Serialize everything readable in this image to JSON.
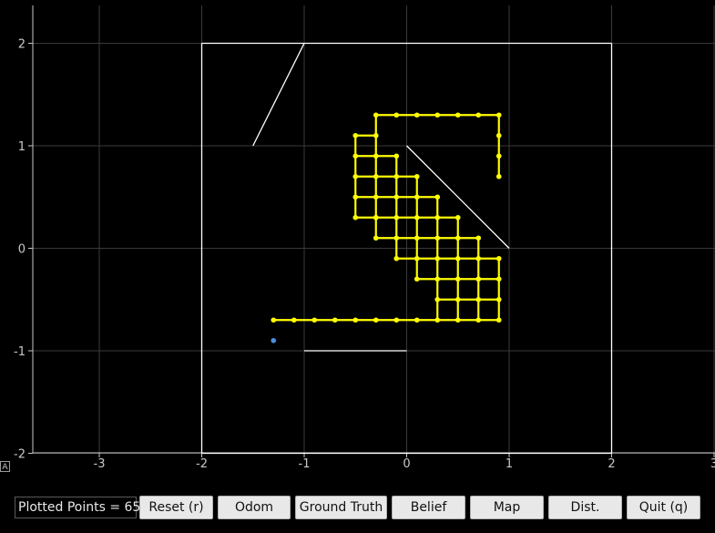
{
  "axes": {
    "x_ticks": [
      "-3",
      "-2",
      "-1",
      "0",
      "1",
      "2",
      "3"
    ],
    "y_ticks": [
      "2",
      "1",
      "0",
      "-1",
      "-2"
    ],
    "grid_color": "#3a3a3a",
    "autoscale_label": "A"
  },
  "plot_data": {
    "walls": [
      [
        [
          -2,
          2
        ],
        [
          2,
          2
        ]
      ],
      [
        [
          2,
          2
        ],
        [
          2,
          -2
        ]
      ],
      [
        [
          2,
          -2
        ],
        [
          -2,
          -2
        ]
      ],
      [
        [
          -2,
          -2
        ],
        [
          -2,
          2
        ]
      ],
      [
        [
          -1.5,
          1
        ],
        [
          -1,
          2
        ]
      ],
      [
        [
          0,
          1
        ],
        [
          1,
          0
        ]
      ],
      [
        [
          -1,
          -1
        ],
        [
          0,
          -1
        ]
      ]
    ],
    "trajectory": [
      [
        -1.3,
        -0.7
      ],
      [
        -1.1,
        -0.7
      ],
      [
        -0.9,
        -0.7
      ],
      [
        -0.7,
        -0.7
      ],
      [
        -0.5,
        -0.7
      ],
      [
        -0.3,
        -0.7
      ],
      [
        -0.1,
        -0.7
      ],
      [
        0.1,
        -0.7
      ],
      [
        0.3,
        -0.7
      ],
      [
        0.5,
        -0.7
      ],
      [
        0.7,
        -0.7
      ],
      [
        0.9,
        -0.7
      ],
      [
        0.9,
        -0.5
      ],
      [
        0.9,
        -0.3
      ],
      [
        0.9,
        -0.1
      ],
      [
        0.7,
        -0.1
      ],
      [
        0.7,
        -0.3
      ],
      [
        0.7,
        -0.5
      ],
      [
        0.5,
        -0.5
      ],
      [
        0.3,
        -0.5
      ],
      [
        0.3,
        -0.3
      ],
      [
        0.1,
        -0.3
      ],
      [
        0.1,
        -0.1
      ],
      [
        -0.1,
        -0.1
      ],
      [
        -0.1,
        0.1
      ],
      [
        -0.3,
        0.1
      ],
      [
        -0.3,
        0.3
      ],
      [
        -0.5,
        0.3
      ],
      [
        -0.5,
        0.5
      ],
      [
        -0.5,
        0.7
      ],
      [
        -0.5,
        0.9
      ],
      [
        -0.5,
        1.1
      ],
      [
        -0.3,
        1.1
      ],
      [
        -0.3,
        1.3
      ],
      [
        -0.1,
        1.3
      ],
      [
        0.1,
        1.3
      ],
      [
        0.3,
        1.3
      ],
      [
        0.5,
        1.3
      ],
      [
        0.7,
        1.3
      ],
      [
        0.9,
        1.3
      ],
      [
        0.9,
        1.1
      ],
      [
        0.9,
        0.9
      ],
      [
        0.9,
        0.7
      ],
      [
        -0.3,
        0.9
      ],
      [
        -0.3,
        0.7
      ],
      [
        -0.1,
        0.7
      ],
      [
        -0.1,
        0.5
      ],
      [
        0.1,
        0.5
      ],
      [
        0.1,
        0.3
      ],
      [
        0.3,
        0.3
      ],
      [
        0.3,
        0.1
      ],
      [
        0.5,
        0.1
      ],
      [
        0.5,
        -0.1
      ],
      [
        0.5,
        -0.3
      ],
      [
        -0.1,
        0.9
      ],
      [
        -0.3,
        0.5
      ],
      [
        -0.1,
        0.3
      ],
      [
        0.1,
        0.1
      ],
      [
        0.3,
        -0.1
      ],
      [
        0.7,
        0.1
      ],
      [
        0.1,
        0.7
      ],
      [
        0.3,
        0.5
      ],
      [
        -0.3,
        0.3
      ],
      [
        0.5,
        0.3
      ],
      [
        0.7,
        -0.3
      ]
    ],
    "trajectory_color": "#ffff00",
    "belief_point": [
      -1.3,
      -0.9
    ],
    "belief_color": "#4a90e2",
    "wall_color": "#ffffff"
  },
  "toolbar": {
    "plotted_points_label": "Plotted Points = 65",
    "buttons": [
      {
        "label": "Reset (r)"
      },
      {
        "label": "Odom"
      },
      {
        "label": "Ground Truth"
      },
      {
        "label": "Belief"
      },
      {
        "label": "Map"
      },
      {
        "label": "Dist."
      },
      {
        "label": "Quit (q)"
      }
    ]
  }
}
